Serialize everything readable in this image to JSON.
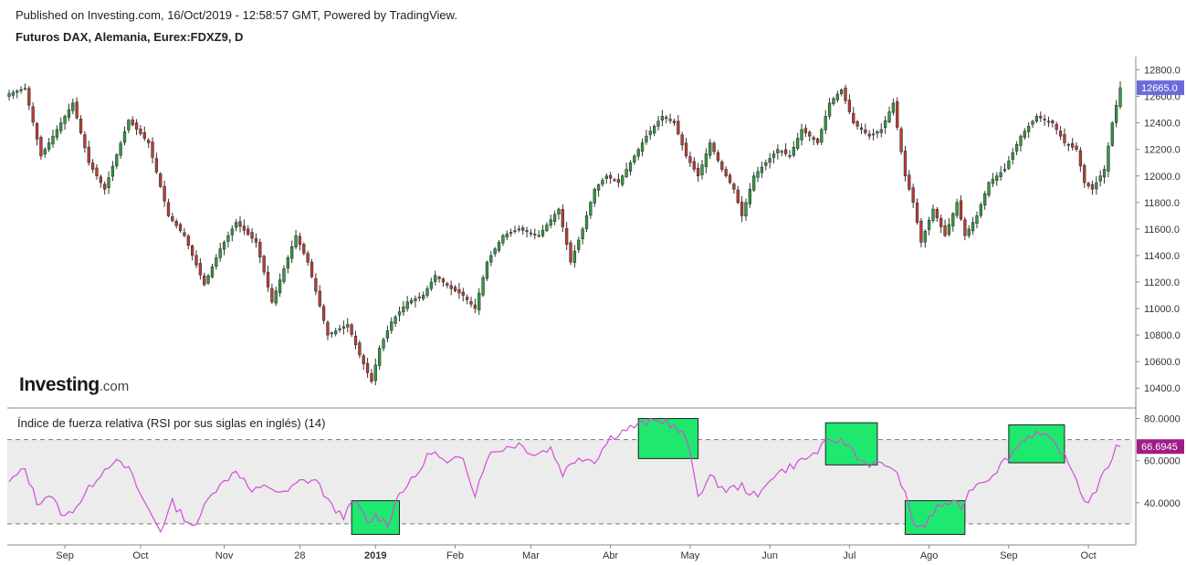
{
  "header": {
    "published": "Published on Investing.com, 16/Oct/2019 - 12:58:57 GMT, Powered by TradingView.",
    "symbol": "Futuros DAX, Alemania, Eurex:FDXZ9, D"
  },
  "logo": {
    "main": "Investing",
    "suffix": ".com"
  },
  "rsi_title": "Índice de fuerza relativa (RSI por sus siglas en inglés) (14)",
  "colors": {
    "up": "#2e9e3e",
    "down": "#c23b32",
    "rsi_line": "#d14fd6",
    "rsi_band": "#ececec",
    "highlight": "#1ee86e",
    "price_badge": "#6b6bd8",
    "rsi_badge": "#a01d86"
  },
  "chart_data": [
    {
      "type": "candlestick",
      "ylim": [
        10250,
        12900
      ],
      "y_ticks": [
        "12800.0",
        "12600.0",
        "12400.0",
        "12200.0",
        "12000.0",
        "11800.0",
        "11600.0",
        "11400.0",
        "11200.0",
        "11000.0",
        "10800.0",
        "10600.0",
        "10400.0"
      ],
      "last_value": "12665.0",
      "x_labels": [
        {
          "label": "Sep",
          "bold": false
        },
        {
          "label": "Oct",
          "bold": false
        },
        {
          "label": "Nov",
          "bold": false
        },
        {
          "label": "28",
          "bold": false
        },
        {
          "label": "2019",
          "bold": true
        },
        {
          "label": "Feb",
          "bold": false
        },
        {
          "label": "Mar",
          "bold": false
        },
        {
          "label": "Abr",
          "bold": false
        },
        {
          "label": "May",
          "bold": false
        },
        {
          "label": "Jun",
          "bold": false
        },
        {
          "label": "Jul",
          "bold": false
        },
        {
          "label": "Ago",
          "bold": false
        },
        {
          "label": "Sep",
          "bold": false
        },
        {
          "label": "Oct",
          "bold": false
        }
      ],
      "x_label_index": [
        14,
        33,
        54,
        73,
        92,
        112,
        131,
        151,
        171,
        191,
        211,
        231,
        251,
        271
      ],
      "anchors": [
        [
          0,
          12620
        ],
        [
          4,
          12660
        ],
        [
          8,
          12150
        ],
        [
          12,
          12350
        ],
        [
          16,
          12550
        ],
        [
          20,
          12100
        ],
        [
          24,
          11900
        ],
        [
          30,
          12420
        ],
        [
          35,
          12250
        ],
        [
          40,
          11700
        ],
        [
          44,
          11550
        ],
        [
          49,
          11180
        ],
        [
          53,
          11450
        ],
        [
          57,
          11650
        ],
        [
          62,
          11500
        ],
        [
          66,
          11050
        ],
        [
          72,
          11550
        ],
        [
          75,
          11350
        ],
        [
          80,
          10800
        ],
        [
          85,
          10880
        ],
        [
          88,
          10650
        ],
        [
          91,
          10450
        ],
        [
          93,
          10700
        ],
        [
          96,
          10900
        ],
        [
          100,
          11050
        ],
        [
          104,
          11100
        ],
        [
          107,
          11250
        ],
        [
          111,
          11150
        ],
        [
          114,
          11100
        ],
        [
          117,
          11000
        ],
        [
          120,
          11350
        ],
        [
          124,
          11550
        ],
        [
          128,
          11600
        ],
        [
          133,
          11550
        ],
        [
          138,
          11750
        ],
        [
          141,
          11350
        ],
        [
          144,
          11600
        ],
        [
          147,
          11900
        ],
        [
          150,
          12000
        ],
        [
          153,
          11950
        ],
        [
          157,
          12150
        ],
        [
          160,
          12300
        ],
        [
          164,
          12450
        ],
        [
          167,
          12400
        ],
        [
          170,
          12150
        ],
        [
          173,
          12000
        ],
        [
          176,
          12250
        ],
        [
          179,
          12050
        ],
        [
          182,
          11900
        ],
        [
          184,
          11700
        ],
        [
          187,
          12000
        ],
        [
          190,
          12100
        ],
        [
          193,
          12200
        ],
        [
          196,
          12150
        ],
        [
          199,
          12350
        ],
        [
          203,
          12250
        ],
        [
          206,
          12550
        ],
        [
          209,
          12650
        ],
        [
          212,
          12400
        ],
        [
          216,
          12300
        ],
        [
          219,
          12350
        ],
        [
          222,
          12550
        ],
        [
          225,
          12000
        ],
        [
          227,
          11800
        ],
        [
          229,
          11500
        ],
        [
          232,
          11750
        ],
        [
          235,
          11550
        ],
        [
          238,
          11800
        ],
        [
          240,
          11550
        ],
        [
          243,
          11700
        ],
        [
          246,
          11950
        ],
        [
          250,
          12050
        ],
        [
          254,
          12300
        ],
        [
          258,
          12450
        ],
        [
          262,
          12400
        ],
        [
          265,
          12250
        ],
        [
          268,
          12200
        ],
        [
          270,
          11950
        ],
        [
          272,
          11900
        ],
        [
          275,
          12050
        ],
        [
          277,
          12400
        ],
        [
          279,
          12665
        ]
      ]
    },
    {
      "type": "line",
      "name": "RSI (14)",
      "ylim": [
        20,
        85
      ],
      "y_ticks": [
        "80.0000",
        "60.0000",
        "40.0000"
      ],
      "bands": [
        70,
        30
      ],
      "last_value": "66.6945",
      "anchors": [
        [
          0,
          50
        ],
        [
          4,
          56
        ],
        [
          7,
          40
        ],
        [
          10,
          44
        ],
        [
          14,
          33
        ],
        [
          18,
          41
        ],
        [
          22,
          52
        ],
        [
          26,
          60
        ],
        [
          30,
          56
        ],
        [
          34,
          40
        ],
        [
          38,
          27
        ],
        [
          41,
          40
        ],
        [
          44,
          33
        ],
        [
          47,
          28
        ],
        [
          50,
          44
        ],
        [
          53,
          48
        ],
        [
          57,
          56
        ],
        [
          61,
          45
        ],
        [
          65,
          48
        ],
        [
          69,
          44
        ],
        [
          73,
          50
        ],
        [
          77,
          51
        ],
        [
          81,
          38
        ],
        [
          84,
          34
        ],
        [
          87,
          41
        ],
        [
          90,
          30
        ],
        [
          92,
          34
        ],
        [
          95,
          30
        ],
        [
          98,
          45
        ],
        [
          102,
          52
        ],
        [
          106,
          65
        ],
        [
          110,
          58
        ],
        [
          114,
          62
        ],
        [
          117,
          44
        ],
        [
          120,
          62
        ],
        [
          124,
          66
        ],
        [
          128,
          68
        ],
        [
          132,
          63
        ],
        [
          136,
          66
        ],
        [
          139,
          54
        ],
        [
          143,
          62
        ],
        [
          147,
          60
        ],
        [
          151,
          71
        ],
        [
          155,
          75
        ],
        [
          160,
          78
        ],
        [
          165,
          79
        ],
        [
          170,
          71
        ],
        [
          173,
          44
        ],
        [
          176,
          52
        ],
        [
          180,
          46
        ],
        [
          184,
          48
        ],
        [
          188,
          42
        ],
        [
          191,
          52
        ],
        [
          195,
          56
        ],
        [
          199,
          60
        ],
        [
          202,
          63
        ],
        [
          205,
          68
        ],
        [
          208,
          70
        ],
        [
          211,
          67
        ],
        [
          214,
          60
        ],
        [
          217,
          58
        ],
        [
          221,
          58
        ],
        [
          224,
          50
        ],
        [
          227,
          30
        ],
        [
          230,
          29
        ],
        [
          233,
          38
        ],
        [
          236,
          40
        ],
        [
          239,
          38
        ],
        [
          242,
          48
        ],
        [
          246,
          52
        ],
        [
          249,
          58
        ],
        [
          252,
          64
        ],
        [
          255,
          71
        ],
        [
          258,
          73
        ],
        [
          261,
          70
        ],
        [
          264,
          65
        ],
        [
          266,
          58
        ],
        [
          268,
          52
        ],
        [
          270,
          40
        ],
        [
          272,
          43
        ],
        [
          274,
          50
        ],
        [
          276,
          58
        ],
        [
          278,
          66
        ],
        [
          279,
          66.69
        ]
      ],
      "highlights": [
        {
          "x0": 86,
          "x1": 98,
          "y0": 25,
          "y1": 41
        },
        {
          "x0": 158,
          "x1": 173,
          "y0": 61,
          "y1": 80
        },
        {
          "x0": 205,
          "x1": 218,
          "y0": 58,
          "y1": 78
        },
        {
          "x0": 225,
          "x1": 240,
          "y0": 25,
          "y1": 41
        },
        {
          "x0": 251,
          "x1": 265,
          "y0": 59,
          "y1": 77
        }
      ]
    }
  ]
}
